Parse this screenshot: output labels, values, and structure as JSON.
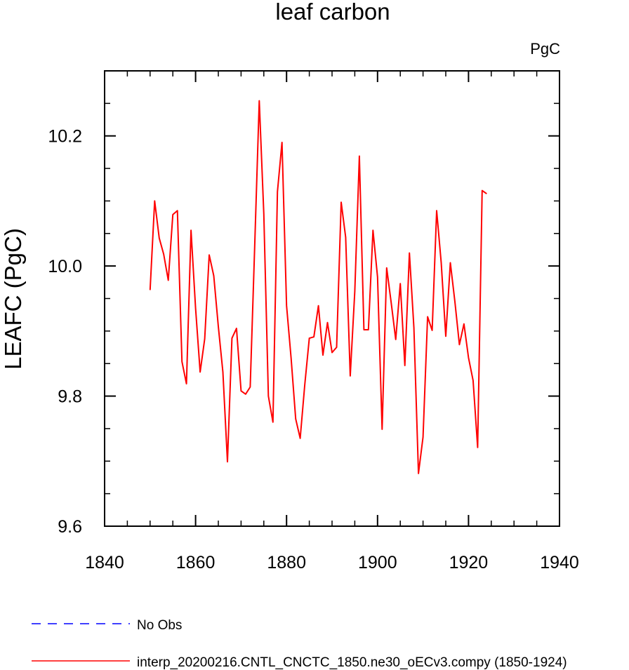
{
  "chart_data": {
    "type": "line",
    "title": "leaf carbon",
    "units": "PgC",
    "xlabel": "",
    "ylabel": "LEAFC  (PgC)",
    "xlim": [
      1840,
      1940
    ],
    "ylim": [
      9.6,
      10.3
    ],
    "x_ticks": [
      1840,
      1860,
      1880,
      1900,
      1920,
      1940
    ],
    "x_tick_labels": [
      "1840",
      "1860",
      "1880",
      "1900",
      "1920",
      "1940"
    ],
    "y_ticks": [
      9.6,
      9.8,
      10.0,
      10.2
    ],
    "y_tick_labels": [
      "9.6",
      "9.8",
      "10.0",
      "10.2"
    ],
    "grid": false,
    "legend_position": "bottom",
    "series": [
      {
        "name": "No Obs",
        "color": "#0000ff",
        "style": "dashed",
        "x": [],
        "values": []
      },
      {
        "name": "interp_20200216.CNTL_CNCTC_1850.ne30_oECv3.compy (1850-1924)",
        "color": "#ff0000",
        "style": "solid",
        "x": [
          1850,
          1851,
          1852,
          1853,
          1854,
          1855,
          1856,
          1857,
          1858,
          1859,
          1860,
          1861,
          1862,
          1863,
          1864,
          1865,
          1866,
          1867,
          1868,
          1869,
          1870,
          1871,
          1872,
          1873,
          1874,
          1875,
          1876,
          1877,
          1878,
          1879,
          1880,
          1881,
          1882,
          1883,
          1884,
          1885,
          1886,
          1887,
          1888,
          1889,
          1890,
          1891,
          1892,
          1893,
          1894,
          1895,
          1896,
          1897,
          1898,
          1899,
          1900,
          1901,
          1902,
          1903,
          1904,
          1905,
          1906,
          1907,
          1908,
          1909,
          1910,
          1911,
          1912,
          1913,
          1914,
          1915,
          1916,
          1917,
          1918,
          1919,
          1920,
          1921,
          1922,
          1923,
          1924
        ],
        "values": [
          9.963,
          10.1,
          10.043,
          10.018,
          9.978,
          10.079,
          10.085,
          9.853,
          9.819,
          10.055,
          9.935,
          9.837,
          9.888,
          10.017,
          9.985,
          9.907,
          9.837,
          9.699,
          9.889,
          9.904,
          9.808,
          9.803,
          9.814,
          10.03,
          10.254,
          10.08,
          9.8,
          9.76,
          10.114,
          10.19,
          9.939,
          9.858,
          9.765,
          9.735,
          9.817,
          9.889,
          9.891,
          9.939,
          9.863,
          9.913,
          9.867,
          9.875,
          10.098,
          10.044,
          9.831,
          9.961,
          10.169,
          9.902,
          9.902,
          10.055,
          9.983,
          9.749,
          9.997,
          9.944,
          9.887,
          9.973,
          9.847,
          10.02,
          9.905,
          9.681,
          9.737,
          9.922,
          9.901,
          10.085,
          10.005,
          9.892,
          10.005,
          9.945,
          9.879,
          9.911,
          9.859,
          9.824,
          9.721,
          10.116,
          10.111
        ]
      }
    ]
  }
}
